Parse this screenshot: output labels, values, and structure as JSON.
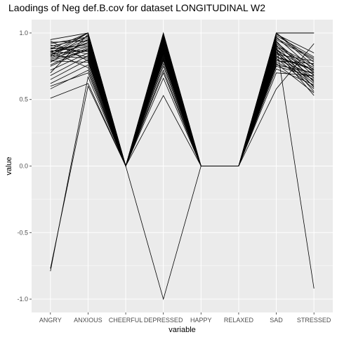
{
  "chart_data": {
    "type": "line",
    "title": "Laodings of Neg def.B.cov for dataset LONGITUDINAL W2",
    "xlabel": "variable",
    "ylabel": "value",
    "categories": [
      "ANGRY",
      "ANXIOUS",
      "CHEERFUL",
      "DEPRESSED",
      "HAPPY",
      "RELAXED",
      "SAD",
      "STRESSED"
    ],
    "ylim": [
      -1.1,
      1.1
    ],
    "yticks": [
      -1.0,
      -0.5,
      0.0,
      0.5,
      1.0
    ],
    "ytick_labels": [
      "-1.0",
      "-0.5",
      "0.0",
      "0.5",
      "1.0"
    ],
    "grid": true,
    "legend": "none",
    "background_color": "#ebebeb",
    "grid_color": "#ffffff",
    "line_color": "#000000",
    "series": [
      {
        "values": [
          0.85,
          1.0,
          0.0,
          0.98,
          0.0,
          0.0,
          1.0,
          0.75
        ]
      },
      {
        "values": [
          0.88,
          1.0,
          0.0,
          0.97,
          0.0,
          0.0,
          1.0,
          0.78
        ]
      },
      {
        "values": [
          0.82,
          0.98,
          0.0,
          0.95,
          0.0,
          0.0,
          0.97,
          0.72
        ]
      },
      {
        "values": [
          0.9,
          0.96,
          0.0,
          0.96,
          0.0,
          0.0,
          0.95,
          0.8
        ]
      },
      {
        "values": [
          0.78,
          0.95,
          0.0,
          0.94,
          0.0,
          0.0,
          0.93,
          0.7
        ]
      },
      {
        "values": [
          0.93,
          0.94,
          0.0,
          0.93,
          0.0,
          0.0,
          0.92,
          0.68
        ]
      },
      {
        "values": [
          0.86,
          0.92,
          0.0,
          0.92,
          0.0,
          0.0,
          0.9,
          0.76
        ]
      },
      {
        "values": [
          0.8,
          0.9,
          0.0,
          0.91,
          0.0,
          0.0,
          0.89,
          0.74
        ]
      },
      {
        "values": [
          0.75,
          0.88,
          0.0,
          0.9,
          0.0,
          0.0,
          0.88,
          0.66
        ]
      },
      {
        "values": [
          0.84,
          0.87,
          0.0,
          0.89,
          0.0,
          0.0,
          0.87,
          0.71
        ]
      },
      {
        "values": [
          0.89,
          0.86,
          0.0,
          0.88,
          0.0,
          0.0,
          0.86,
          0.64
        ]
      },
      {
        "values": [
          0.72,
          0.85,
          0.0,
          0.87,
          0.0,
          0.0,
          0.85,
          0.62
        ]
      },
      {
        "values": [
          0.91,
          0.84,
          0.0,
          0.86,
          0.0,
          0.0,
          0.84,
          0.79
        ]
      },
      {
        "values": [
          0.68,
          0.83,
          0.0,
          0.85,
          0.0,
          0.0,
          0.83,
          0.6
        ]
      },
      {
        "values": [
          0.87,
          0.82,
          0.0,
          0.84,
          0.0,
          0.0,
          0.82,
          0.73
        ]
      },
      {
        "values": [
          0.83,
          0.81,
          0.0,
          0.83,
          0.0,
          0.0,
          0.81,
          0.58
        ]
      },
      {
        "values": [
          0.65,
          0.8,
          0.0,
          0.82,
          0.0,
          0.0,
          0.8,
          0.69
        ]
      },
      {
        "values": [
          0.94,
          0.79,
          0.0,
          0.81,
          0.0,
          0.0,
          0.79,
          0.77
        ]
      },
      {
        "values": [
          0.79,
          0.78,
          0.0,
          0.8,
          0.0,
          0.0,
          0.78,
          0.65
        ]
      },
      {
        "values": [
          0.62,
          0.76,
          0.0,
          0.79,
          0.0,
          0.0,
          0.77,
          0.55
        ]
      },
      {
        "values": [
          0.86,
          0.74,
          0.0,
          0.77,
          0.0,
          0.0,
          0.76,
          0.7
        ]
      },
      {
        "values": [
          0.58,
          0.72,
          0.0,
          0.75,
          0.0,
          0.0,
          0.75,
          0.67
        ]
      },
      {
        "values": [
          0.92,
          0.97,
          0.0,
          0.99,
          0.0,
          0.0,
          0.98,
          0.82
        ]
      },
      {
        "values": [
          0.81,
          0.93,
          0.0,
          0.9,
          0.0,
          0.0,
          0.94,
          0.63
        ]
      },
      {
        "values": [
          0.76,
          0.89,
          0.0,
          0.86,
          0.0,
          0.0,
          0.91,
          0.59
        ]
      },
      {
        "values": [
          0.88,
          0.91,
          0.0,
          0.93,
          0.0,
          0.0,
          0.96,
          0.81
        ]
      },
      {
        "values": [
          0.7,
          0.99,
          0.0,
          0.96,
          0.0,
          0.0,
          0.99,
          0.85
        ]
      },
      {
        "values": [
          0.95,
          1.0,
          0.0,
          1.0,
          0.0,
          0.0,
          1.0,
          1.0
        ]
      },
      {
        "values": [
          0.84,
          0.95,
          0.0,
          0.72,
          0.0,
          0.0,
          0.88,
          0.56
        ]
      },
      {
        "values": [
          0.6,
          0.7,
          0.0,
          0.7,
          0.0,
          0.0,
          0.86,
          0.53
        ]
      },
      {
        "values": [
          0.51,
          0.62,
          0.0,
          0.53,
          0.0,
          0.0,
          0.58,
          0.92
        ]
      },
      {
        "values": [
          0.79,
          0.87,
          0.0,
          0.66,
          0.0,
          0.0,
          0.73,
          0.61
        ]
      },
      {
        "values": [
          -0.77,
          0.6,
          0.0,
          0.88,
          0.0,
          0.0,
          0.7,
          0.68
        ]
      },
      {
        "values": [
          -0.79,
          0.67,
          0.0,
          0.85,
          0.0,
          0.0,
          0.82,
          0.72
        ]
      },
      {
        "values": [
          0.83,
          1.0,
          0.0,
          -1.0,
          0.0,
          0.0,
          1.0,
          1.0
        ]
      },
      {
        "values": [
          0.86,
          0.9,
          0.0,
          0.92,
          0.0,
          0.0,
          0.92,
          -0.92
        ]
      }
    ]
  }
}
